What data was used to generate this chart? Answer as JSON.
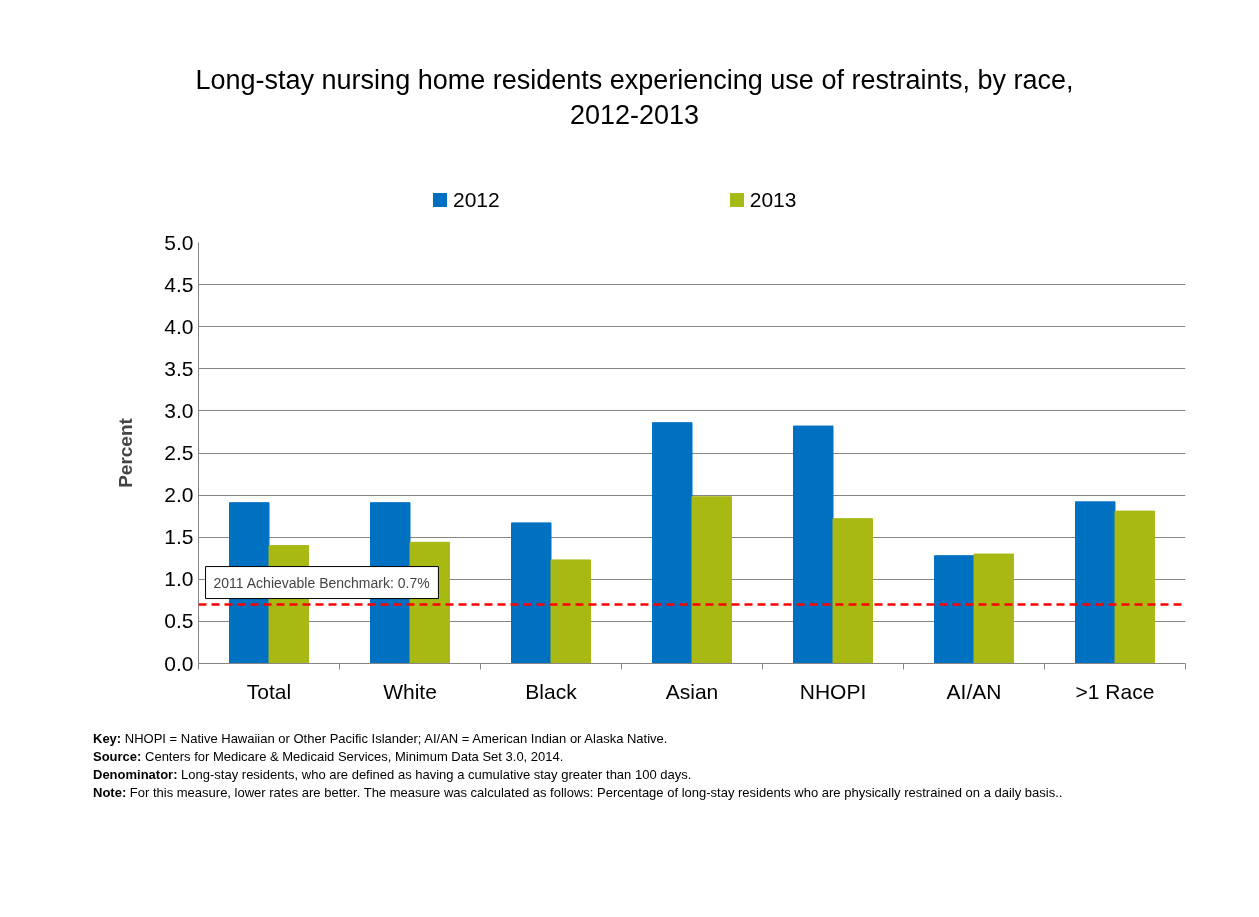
{
  "chart_data": {
    "type": "bar",
    "title": "Long-stay nursing home residents experiencing use of restraints, by race,\n2012-2013",
    "ylabel": "Percent",
    "categories": [
      "Total",
      "White",
      "Black",
      "Asian",
      "NHOPI",
      "AI/AN",
      ">1 Race"
    ],
    "series": [
      {
        "name": "2012",
        "color": "#0070c0",
        "values": [
          1.91,
          1.91,
          1.67,
          2.86,
          2.82,
          1.28,
          1.92
        ]
      },
      {
        "name": "2013",
        "color": "#a9b914",
        "values": [
          1.4,
          1.44,
          1.23,
          1.98,
          1.72,
          1.3,
          1.81
        ]
      }
    ],
    "ylim": [
      0,
      5
    ],
    "yticks": [
      {
        "value": 0,
        "label": "0.0"
      },
      {
        "value": 0.5,
        "label": "0.5"
      },
      {
        "value": 1,
        "label": "1.0"
      },
      {
        "value": 1.5,
        "label": "1.5"
      },
      {
        "value": 2,
        "label": "2.0"
      },
      {
        "value": 2.5,
        "label": "2.5"
      },
      {
        "value": 3,
        "label": "3.0"
      },
      {
        "value": 3.5,
        "label": "3.5"
      },
      {
        "value": 4,
        "label": "4.0"
      },
      {
        "value": 4.5,
        "label": "4.5"
      },
      {
        "value": 5,
        "label": "5.0"
      }
    ],
    "ref_lines": [
      {
        "axis": "y",
        "value": 0.7,
        "label": "2011 Achievable Benchmark: 0.7%",
        "color": "#ff0000",
        "line_style": "dashed"
      }
    ],
    "grid": "y",
    "legend": "top",
    "annotations": [
      "Key: NHOPI = Native Hawaiian or Other Pacific Islander; AI/AN = American Indian or Alaska Native.",
      "Source: Centers for Medicare & Medicaid Services, Minimum Data Set 3.0, 2014.",
      "Denominator:  Long-stay residents, who are defined as having a cumulative stay greater than 100 days.",
      "Note: For this measure, lower rates are better.  The measure was calculated as follows: Percentage of long-stay residents who are physically restrained on a daily basis.."
    ]
  }
}
